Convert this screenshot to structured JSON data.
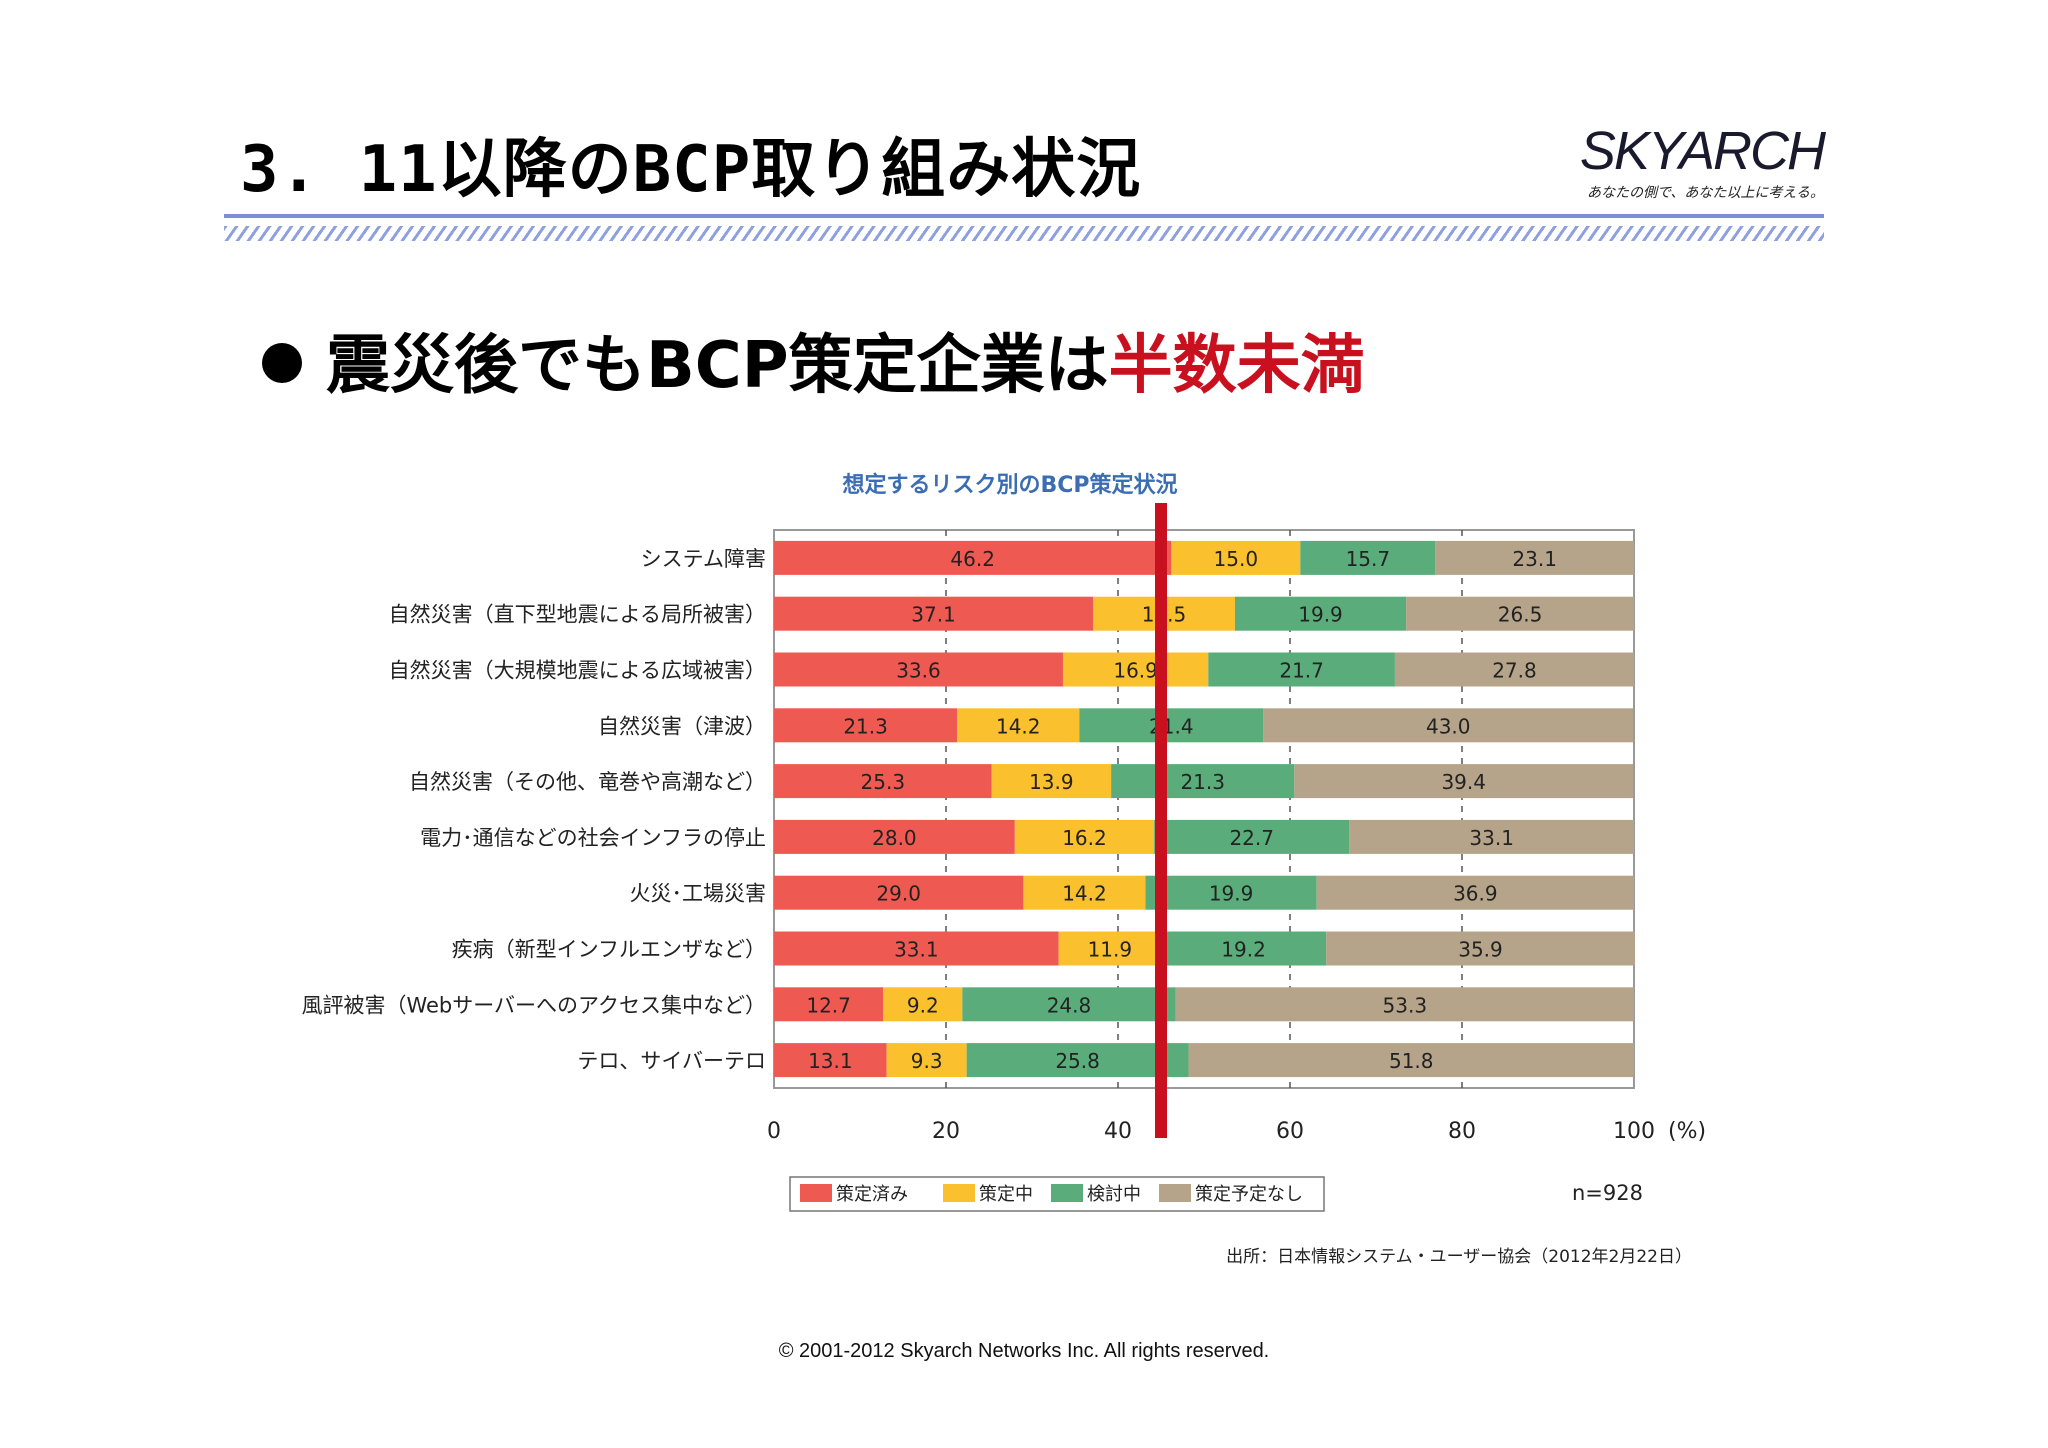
{
  "slide": {
    "title": "3. 11以降のBCP取り組み状況",
    "bullet_prefix": "震災後でもBCP策定企業は",
    "bullet_highlight": "半数未満",
    "footer": "© 2001-2012 Skyarch Networks Inc. All rights reserved."
  },
  "logo": {
    "name": "SKYARCH",
    "tagline": "あなたの側で、あなた以上に考える。"
  },
  "colors": {
    "accent_red": "#c8101e",
    "title_rule": "#7a8fd6",
    "chart_title": "#3a6db3"
  },
  "chart_data": {
    "type": "bar",
    "orientation": "horizontal",
    "stacked": true,
    "title": "想定するリスク別のBCP策定状況",
    "categories": [
      "システム障害",
      "自然災害（直下型地震による局所被害）",
      "自然災害（大規模地震による広域被害）",
      "自然災害（津波）",
      "自然災害（その他、竜巻や高潮など）",
      "電力･通信などの社会インフラの停止",
      "火災･工場災害",
      "疾病（新型インフルエンザなど）",
      "風評被害（Webサーバーへのアクセス集中など）",
      "テロ、サイバーテロ"
    ],
    "series": [
      {
        "name": "策定済み",
        "color": "#ee5a52",
        "values": [
          46.2,
          37.1,
          33.6,
          21.3,
          25.3,
          28.0,
          29.0,
          33.1,
          12.7,
          13.1
        ]
      },
      {
        "name": "策定中",
        "color": "#fbc02d",
        "values": [
          15.0,
          16.5,
          16.9,
          14.2,
          13.9,
          16.2,
          14.2,
          11.9,
          9.2,
          9.3
        ]
      },
      {
        "name": "検討中",
        "color": "#5aad7a",
        "values": [
          15.7,
          19.9,
          21.7,
          21.4,
          21.3,
          22.7,
          19.9,
          19.2,
          24.8,
          25.8
        ]
      },
      {
        "name": "策定予定なし",
        "color": "#b5a48a",
        "values": [
          23.1,
          26.5,
          27.8,
          43.0,
          39.4,
          33.1,
          36.9,
          35.9,
          53.3,
          51.8
        ]
      }
    ],
    "xlim": [
      0,
      100
    ],
    "xticks": [
      0,
      20,
      40,
      60,
      80,
      100
    ],
    "x_unit": "(%)",
    "grid": "vertical dashed",
    "legend_position": "bottom",
    "note_n": "n=928",
    "source": "出所：日本情報システム・ユーザー協会（2012年2月22日）",
    "annotation": {
      "type": "vertical line",
      "x": 45,
      "color": "#c8101e"
    }
  }
}
